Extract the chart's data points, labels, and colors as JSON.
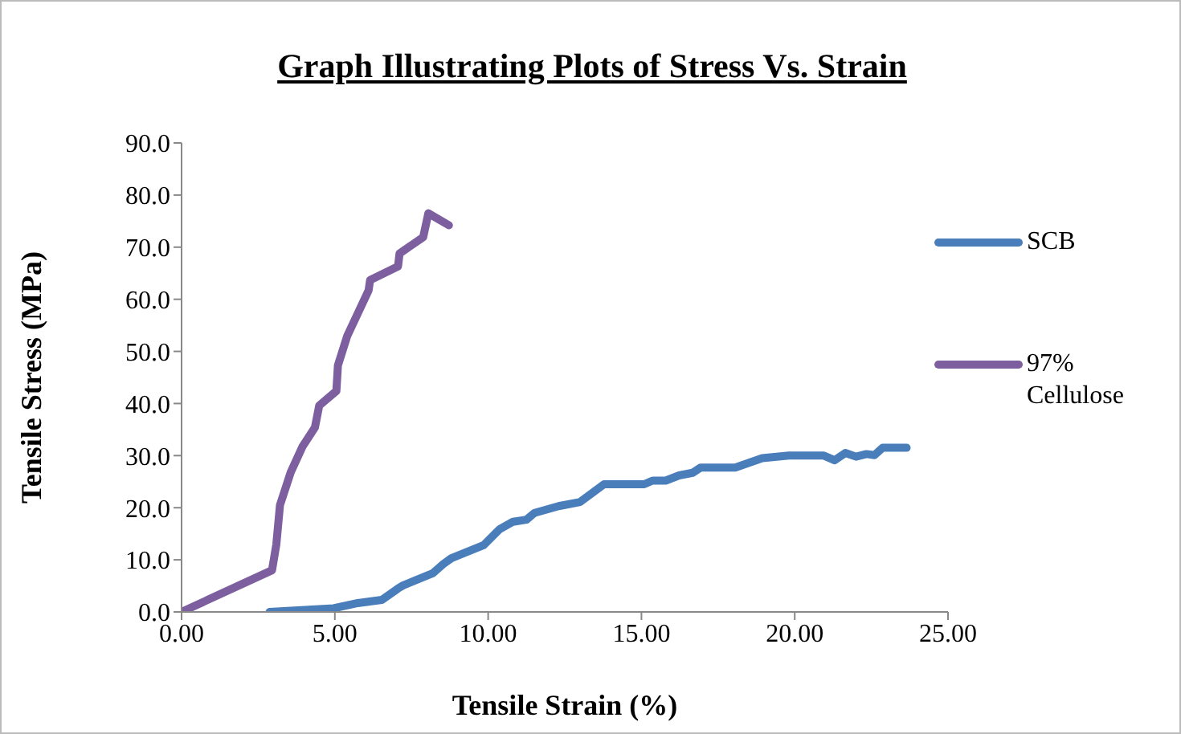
{
  "chart_data": {
    "type": "line",
    "title": "Graph Illustrating Plots of Stress Vs. Strain",
    "xlabel": "Tensile Strain (%)",
    "ylabel": "Tensile Stress (MPa)",
    "series": [
      {
        "name": "SCB",
        "color": "#4a7ebb",
        "x": [
          2.87,
          4.96,
          5.75,
          6.53,
          7.06,
          7.23,
          8.19,
          8.54,
          8.8,
          9.85,
          10.38,
          10.81,
          11.25,
          11.51,
          12.3,
          13.0,
          13.78,
          15.09,
          15.36,
          15.79,
          16.23,
          16.67,
          16.93,
          18.06,
          18.94,
          19.81,
          20.95,
          21.3,
          21.65,
          22.0,
          22.34,
          22.6,
          22.87,
          23.65
        ],
        "values": [
          0,
          0.7,
          1.7,
          2.3,
          4.5,
          5.1,
          7.4,
          9.2,
          10.3,
          12.8,
          15.9,
          17.3,
          17.7,
          19.0,
          20.3,
          21.1,
          24.5,
          24.5,
          25.2,
          25.2,
          26.2,
          26.7,
          27.7,
          27.7,
          29.5,
          30.0,
          30.0,
          29.1,
          30.5,
          29.8,
          30.3,
          30.1,
          31.5,
          31.5
        ]
      },
      {
        "name": "97% Cellulose",
        "color": "#7d5fa0",
        "x": [
          0,
          2.95,
          3.09,
          3.21,
          3.56,
          3.95,
          4.35,
          4.49,
          5.05,
          5.1,
          5.4,
          6.1,
          6.15,
          7.06,
          7.11,
          7.88,
          8.05,
          8.72
        ],
        "values": [
          0,
          8.0,
          12.9,
          20.5,
          26.8,
          31.8,
          35.4,
          39.6,
          42.4,
          47.3,
          52.9,
          61.7,
          63.7,
          66.3,
          68.8,
          71.9,
          76.5,
          74.2
        ]
      }
    ],
    "xlim": [
      0,
      25
    ],
    "xticks": [
      {
        "value": 0,
        "label": "0.00"
      },
      {
        "value": 5,
        "label": "5.00"
      },
      {
        "value": 10,
        "label": "10.00"
      },
      {
        "value": 15,
        "label": "15.00"
      },
      {
        "value": 20,
        "label": "20.00"
      },
      {
        "value": 25,
        "label": "25.00"
      }
    ],
    "ylim": [
      0,
      90
    ],
    "yticks": [
      {
        "value": 0,
        "label": "0.0"
      },
      {
        "value": 10,
        "label": "10.0"
      },
      {
        "value": 20,
        "label": "20.0"
      },
      {
        "value": 30,
        "label": "30.0"
      },
      {
        "value": 40,
        "label": "40.0"
      },
      {
        "value": 50,
        "label": "50.0"
      },
      {
        "value": 60,
        "label": "60.0"
      },
      {
        "value": 70,
        "label": "70.0"
      },
      {
        "value": 80,
        "label": "80.0"
      },
      {
        "value": 90,
        "label": "90.0"
      }
    ],
    "grid": false,
    "legend": "right",
    "marker": "none",
    "line_style": "solid"
  }
}
